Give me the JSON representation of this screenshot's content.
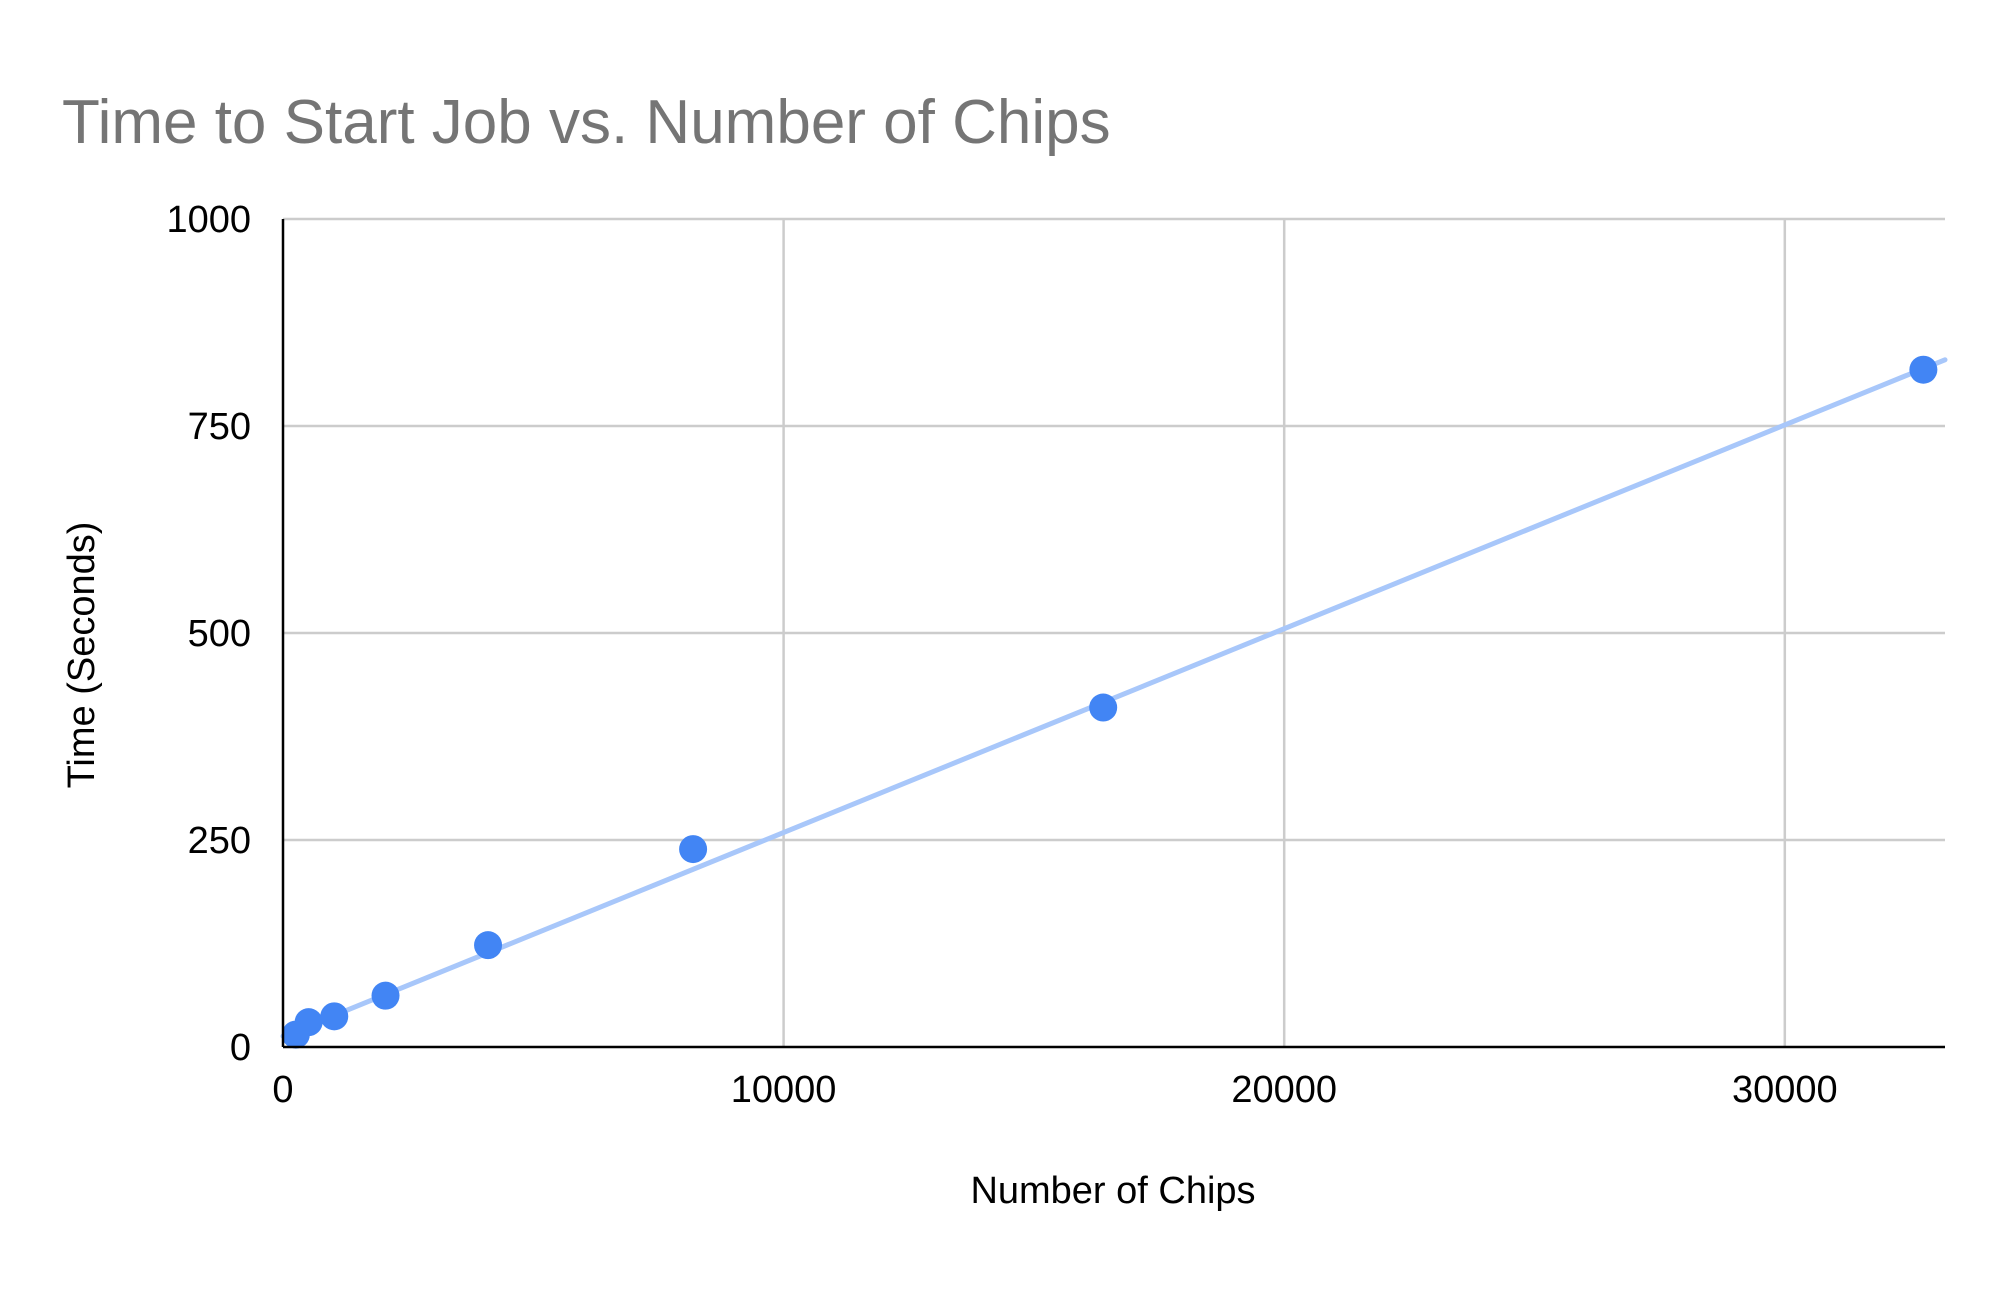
{
  "chart_data": {
    "type": "scatter",
    "title": "Time to Start Job vs. Number of Chips",
    "xlabel": "Number of Chips",
    "ylabel": "Time (Seconds)",
    "xlim": [
      0,
      33200
    ],
    "ylim": [
      0,
      1000
    ],
    "x_ticks": [
      0,
      10000,
      20000,
      30000
    ],
    "y_ticks": [
      0,
      250,
      500,
      750,
      1000
    ],
    "x_tick_labels": [
      "0",
      "10000",
      "20000",
      "30000"
    ],
    "y_tick_labels": [
      "0",
      "250",
      "500",
      "750",
      "1000"
    ],
    "grid": true,
    "legend": "none",
    "series": [
      {
        "color": "#4285f4",
        "x": [
          256,
          512,
          1024,
          2048,
          4096,
          8192,
          16384,
          32768
        ],
        "y": [
          15,
          30,
          37,
          62,
          123,
          239,
          410,
          818
        ]
      }
    ],
    "trendline": {
      "type": "linear",
      "color": "#a8c7fa",
      "x": [
        0,
        33200
      ],
      "y": [
        13,
        830
      ]
    }
  }
}
